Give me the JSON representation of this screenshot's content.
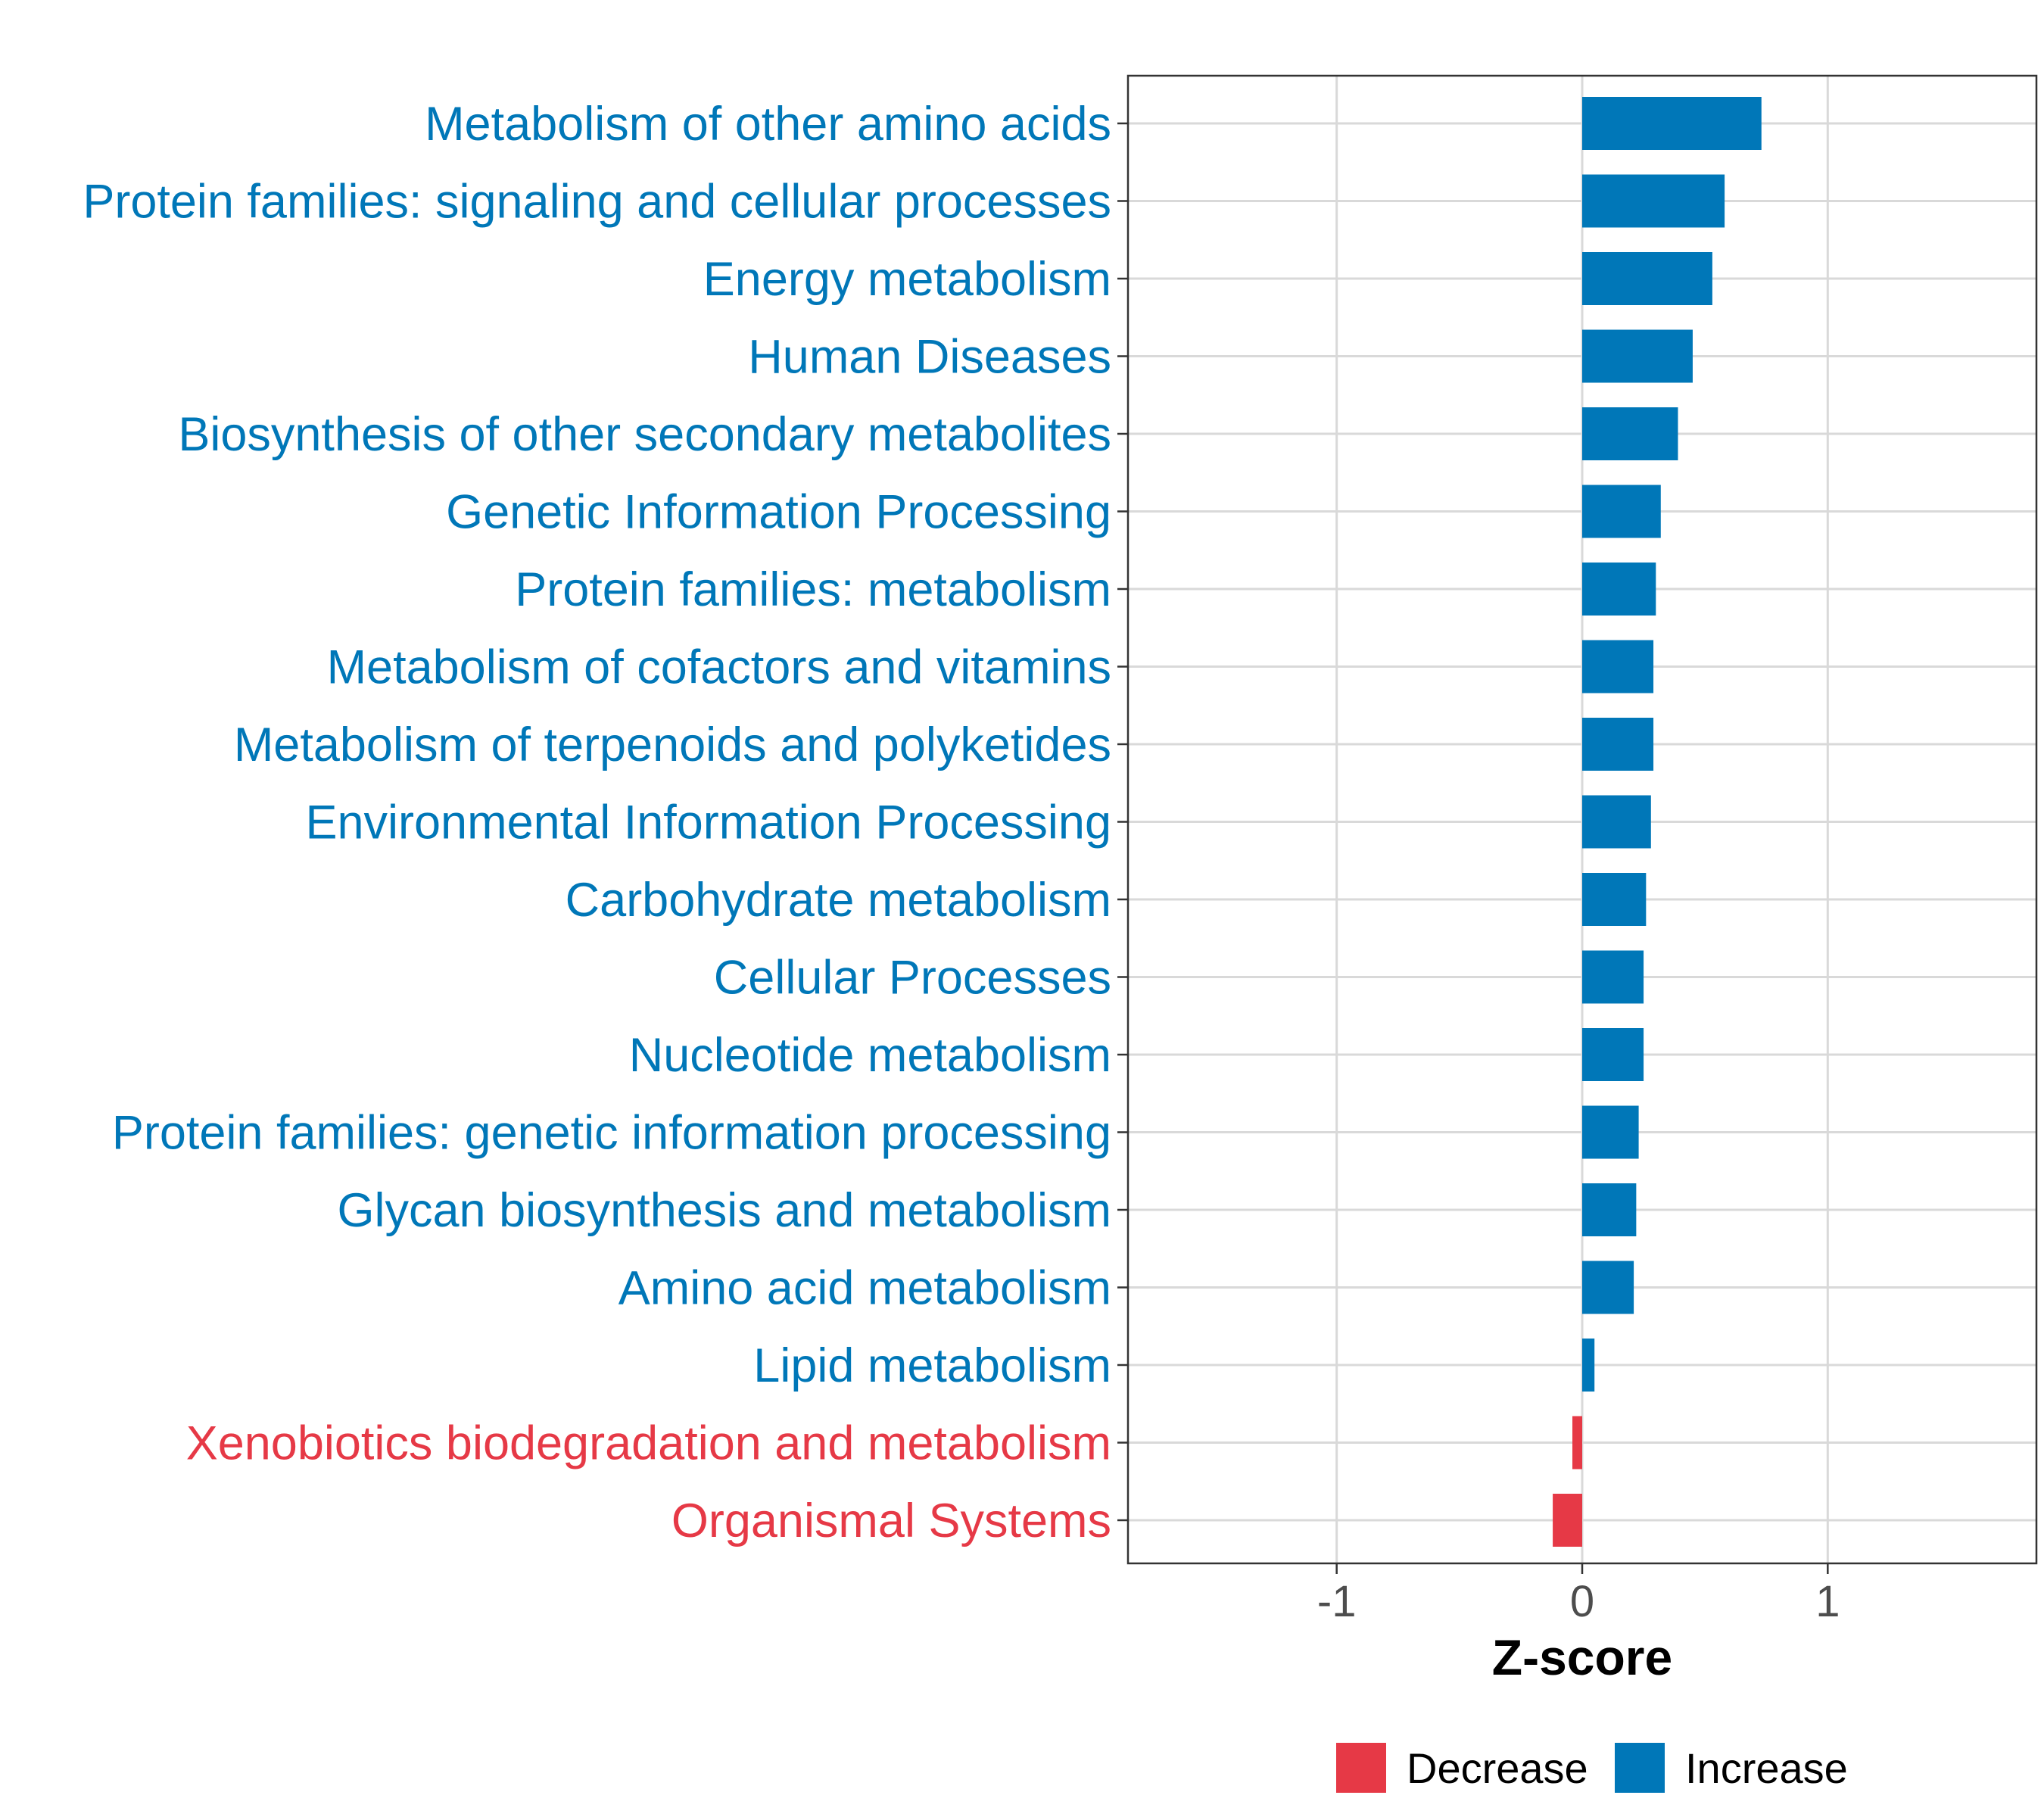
{
  "colors": {
    "increase": "#0077b8",
    "decrease": "#e63946",
    "grid": "#d9d9d9",
    "panel_border": "#333333",
    "tick_text": "#4d4d4d"
  },
  "chart_data": {
    "type": "bar",
    "orientation": "horizontal",
    "title": "",
    "xlabel": "Z-score",
    "ylabel": "",
    "xlim": [
      -1.85,
      1.85
    ],
    "x_ticks": [
      -1,
      0,
      1
    ],
    "x_tick_labels": [
      "-1",
      "0",
      "1"
    ],
    "grid": true,
    "legend": {
      "position": "bottom",
      "entries": [
        {
          "key": "decrease",
          "label": "Decrease"
        },
        {
          "key": "increase",
          "label": "Increase"
        }
      ]
    },
    "categories": [
      "Metabolism of other amino acids",
      "Protein families: signaling and cellular processes",
      "Energy metabolism",
      "Human Diseases",
      "Biosynthesis of other secondary metabolites",
      "Genetic Information Processing",
      "Protein families: metabolism",
      "Metabolism of cofactors and vitamins",
      "Metabolism of terpenoids and polyketides",
      "Environmental Information Processing",
      "Carbohydrate metabolism",
      "Cellular Processes",
      "Nucleotide metabolism",
      "Protein families: genetic information processing",
      "Glycan biosynthesis and metabolism",
      "Amino acid metabolism",
      "Lipid metabolism",
      "Xenobiotics biodegradation and metabolism",
      "Organismal Systems"
    ],
    "values": [
      0.73,
      0.58,
      0.53,
      0.45,
      0.39,
      0.32,
      0.3,
      0.29,
      0.29,
      0.28,
      0.26,
      0.25,
      0.25,
      0.23,
      0.22,
      0.21,
      0.05,
      -0.04,
      -0.12
    ],
    "groups": [
      "increase",
      "increase",
      "increase",
      "increase",
      "increase",
      "increase",
      "increase",
      "increase",
      "increase",
      "increase",
      "increase",
      "increase",
      "increase",
      "increase",
      "increase",
      "increase",
      "increase",
      "decrease",
      "decrease"
    ]
  }
}
